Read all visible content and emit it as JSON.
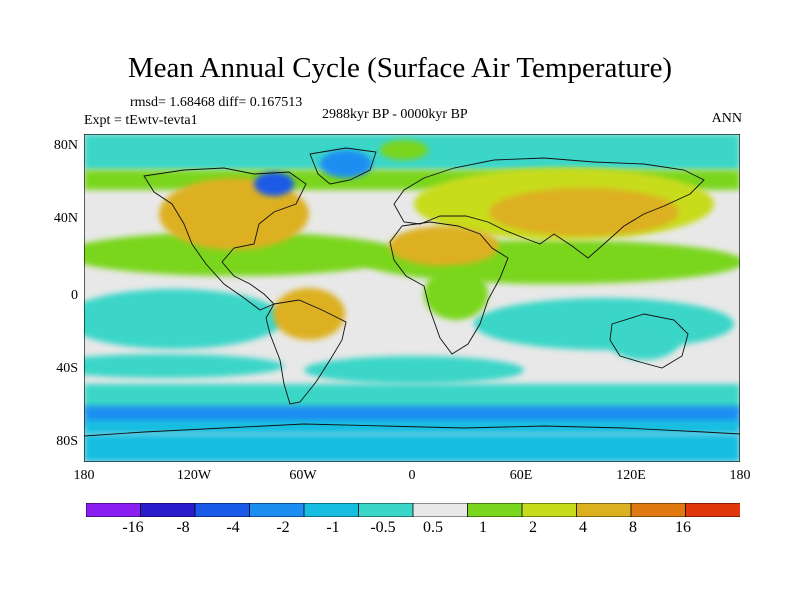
{
  "title": "Mean Annual Cycle (Surface Air Temperature)",
  "stats": "rmsd= 1.68468 diff= 0.167513",
  "period": "2988kyr BP - 0000kyr BP",
  "expt": "Expt = tEwtv-tevta1",
  "season": "ANN",
  "y_ticks": [
    "80N",
    "40N",
    "0",
    "40S",
    "80S"
  ],
  "x_ticks": [
    "180",
    "120W",
    "60W",
    "0",
    "60E",
    "120E",
    "180"
  ],
  "colorbar": {
    "labels": [
      "-16",
      "-8",
      "-4",
      "-2",
      "-1",
      "-0.5",
      "0.5",
      "1",
      "2",
      "4",
      "8",
      "16"
    ],
    "colors": [
      "#8a1ef0",
      "#2a1ccc",
      "#1a5ae8",
      "#1c8ef2",
      "#16bde0",
      "#3ad6c8",
      "#e8e8e8",
      "#7ad61e",
      "#c8dc1e",
      "#ddb020",
      "#e07a10",
      "#e0380c"
    ]
  },
  "palette": {
    "sea_neutral": "#e8e8e8",
    "cool_light": "#3ad6c8",
    "cool_mid": "#16bde0",
    "cool_deep": "#1c8ef2",
    "cool_deeper": "#1a5ae8",
    "warm_green": "#7ad61e",
    "warm_yellow": "#c8dc1e",
    "warm_orange": "#ddb020",
    "hot": "#e0380c"
  }
}
